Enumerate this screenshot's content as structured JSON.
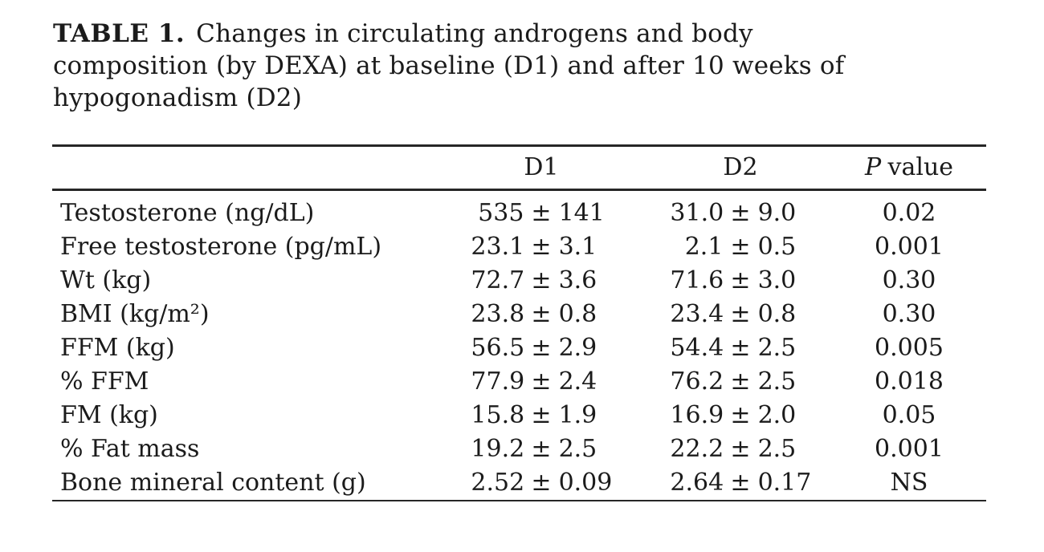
{
  "caption": {
    "label": "TABLE 1.",
    "lines": [
      "Changes in circulating androgens and body",
      "composition (by DEXA) at baseline (D1) and after 10 weeks of",
      "hypogonadism (D2)"
    ]
  },
  "columns": {
    "d1": "D1",
    "d2": "D2",
    "p_letter": "P",
    "p_word": "value"
  },
  "plus_minus": "±",
  "rows": [
    {
      "label": "Testosterone (ng/dL)",
      "d1": [
        "535",
        "141"
      ],
      "d2": [
        "31.0",
        "9.0"
      ],
      "p": "0.02"
    },
    {
      "label": "Free testosterone (pg/mL)",
      "d1": [
        "23.1",
        "3.1"
      ],
      "d2": [
        "2.1",
        "0.5"
      ],
      "p": "0.001"
    },
    {
      "label": "Wt (kg)",
      "d1": [
        "72.7",
        "3.6"
      ],
      "d2": [
        "71.6",
        "3.0"
      ],
      "p": "0.30"
    },
    {
      "label": "BMI (kg/m²)",
      "d1": [
        "23.8",
        "0.8"
      ],
      "d2": [
        "23.4",
        "0.8"
      ],
      "p": "0.30"
    },
    {
      "label": "FFM (kg)",
      "d1": [
        "56.5",
        "2.9"
      ],
      "d2": [
        "54.4",
        "2.5"
      ],
      "p": "0.005"
    },
    {
      "label": "% FFM",
      "d1": [
        "77.9",
        "2.4"
      ],
      "d2": [
        "76.2",
        "2.5"
      ],
      "p": "0.018"
    },
    {
      "label": "FM (kg)",
      "d1": [
        "15.8",
        "1.9"
      ],
      "d2": [
        "16.9",
        "2.0"
      ],
      "p": "0.05"
    },
    {
      "label": "% Fat mass",
      "d1": [
        "19.2",
        "2.5"
      ],
      "d2": [
        "22.2",
        "2.5"
      ],
      "p": "0.001"
    },
    {
      "label": "Bone mineral content (g)",
      "d1": [
        "2.52",
        "0.09"
      ],
      "d2": [
        "2.64",
        "0.17"
      ],
      "p": "NS"
    }
  ]
}
